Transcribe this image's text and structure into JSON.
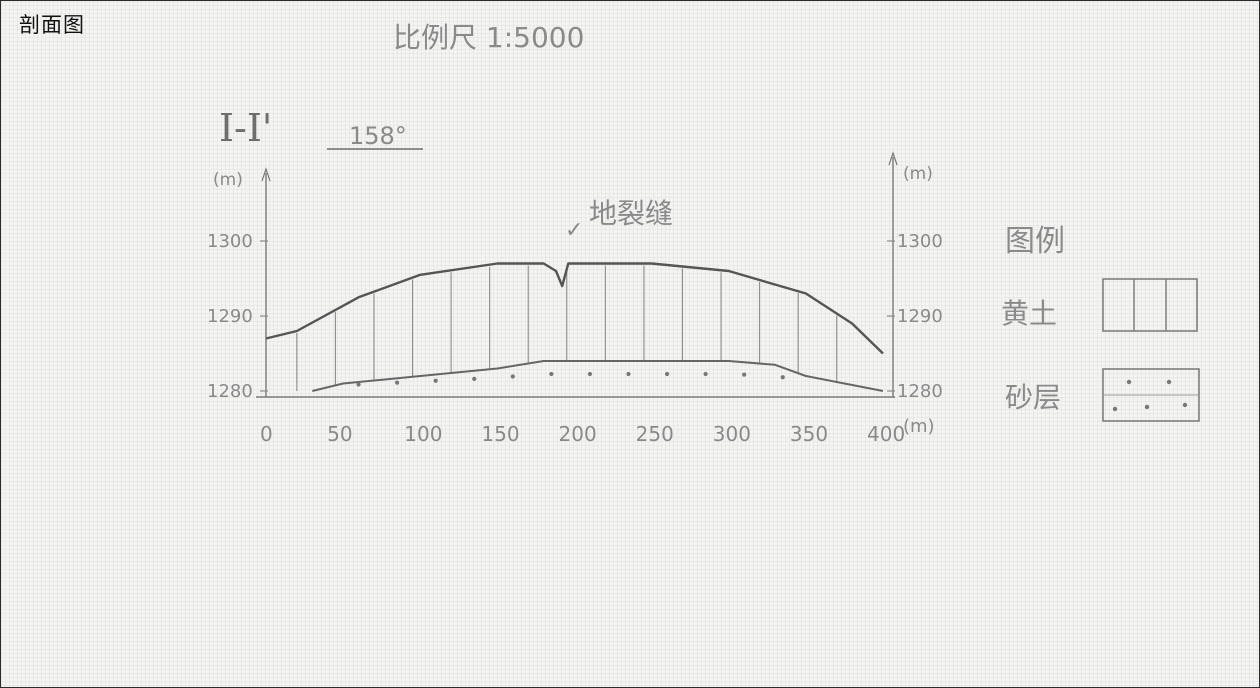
{
  "title": "剖面图",
  "scale": "比例尺 1:5000",
  "section": {
    "label": "I-I'",
    "bearing": "158°"
  },
  "fault_label": "地裂缝",
  "legend": {
    "title": "图例",
    "items": [
      {
        "label": "黄土",
        "pattern": "vertical-lines"
      },
      {
        "label": "砂层",
        "pattern": "dots"
      }
    ]
  },
  "colors": {
    "pencil": "#6e6e6e",
    "ink": "#111111",
    "paper": "#f4f5f3"
  },
  "chart_data": {
    "type": "cross-section",
    "xlabel": "(m)",
    "ylabel": "(m)",
    "x_ticks": [
      "0",
      "50",
      "100",
      "150",
      "200",
      "250",
      "300",
      "350",
      "400"
    ],
    "x_unit_label": "(m)",
    "y_ticks_left": [
      "1300",
      "1290",
      "1280"
    ],
    "y_ticks_right": [
      "1300",
      "1290",
      "1280"
    ],
    "xlim": [
      0,
      400
    ],
    "ylim": [
      1280,
      1300
    ],
    "fault_x": 192,
    "series": [
      {
        "name": "黄土",
        "x": [
          0,
          20,
          60,
          100,
          150,
          180,
          188,
          192,
          196,
          205,
          250,
          300,
          350,
          380,
          400
        ],
        "y": [
          1287,
          1288,
          1292.5,
          1295.5,
          1297,
          1297,
          1296,
          1294,
          1297,
          1297,
          1297,
          1296,
          1293,
          1289,
          1285
        ]
      },
      {
        "name": "砂层",
        "x": [
          30,
          50,
          100,
          150,
          180,
          250,
          300,
          330,
          350,
          400
        ],
        "y": [
          1280,
          1281,
          1282,
          1283,
          1284,
          1284,
          1284,
          1283.5,
          1282,
          1280
        ]
      }
    ]
  }
}
